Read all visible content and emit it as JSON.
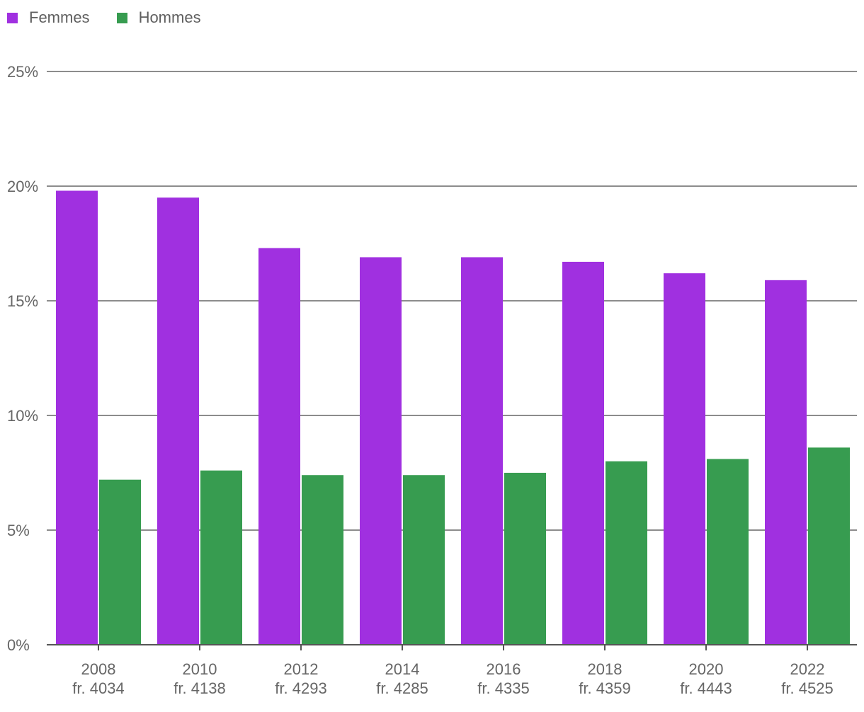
{
  "chart_data": {
    "type": "bar",
    "categories": [
      [
        "2008",
        "fr. 4034"
      ],
      [
        "2010",
        "fr. 4138"
      ],
      [
        "2012",
        "fr. 4293"
      ],
      [
        "2014",
        "fr. 4285"
      ],
      [
        "2016",
        "fr. 4335"
      ],
      [
        "2018",
        "fr. 4359"
      ],
      [
        "2020",
        "fr. 4443"
      ],
      [
        "2022",
        "fr. 4525"
      ]
    ],
    "series": [
      {
        "name": "Femmes",
        "color": "#a030e0",
        "values": [
          19.8,
          19.5,
          17.3,
          16.9,
          16.9,
          16.7,
          16.2,
          15.9
        ]
      },
      {
        "name": "Hommes",
        "color": "#379c50",
        "values": [
          7.2,
          7.6,
          7.4,
          7.4,
          7.5,
          8.0,
          8.1,
          8.6
        ]
      }
    ],
    "y_ticks": [
      "0%",
      "5%",
      "10%",
      "15%",
      "20%",
      "25%"
    ],
    "ylim": [
      0,
      25
    ],
    "grid": true,
    "legend_position": "top-left"
  }
}
